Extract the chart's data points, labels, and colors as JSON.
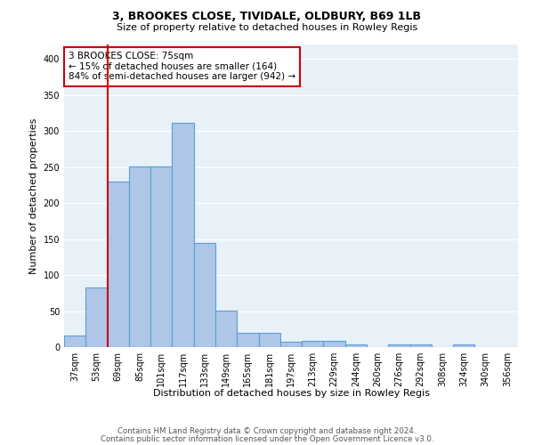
{
  "title1": "3, BROOKES CLOSE, TIVIDALE, OLDBURY, B69 1LB",
  "title2": "Size of property relative to detached houses in Rowley Regis",
  "xlabel": "Distribution of detached houses by size in Rowley Regis",
  "ylabel": "Number of detached properties",
  "categories": [
    "37sqm",
    "53sqm",
    "69sqm",
    "85sqm",
    "101sqm",
    "117sqm",
    "133sqm",
    "149sqm",
    "165sqm",
    "181sqm",
    "197sqm",
    "213sqm",
    "229sqm",
    "244sqm",
    "260sqm",
    "276sqm",
    "292sqm",
    "308sqm",
    "324sqm",
    "340sqm",
    "356sqm"
  ],
  "values": [
    16,
    83,
    230,
    251,
    251,
    311,
    145,
    51,
    20,
    20,
    7,
    9,
    9,
    4,
    0,
    4,
    4,
    0,
    4,
    0,
    0
  ],
  "bar_color": "#aec6e8",
  "bar_edge_color": "#5a9fd4",
  "red_line_color": "#cc0000",
  "red_line_x": 1.5,
  "annotation_text": "3 BROOKES CLOSE: 75sqm\n← 15% of detached houses are smaller (164)\n84% of semi-detached houses are larger (942) →",
  "annotation_box_color": "#ffffff",
  "annotation_box_edge": "#cc0000",
  "footer1": "Contains HM Land Registry data © Crown copyright and database right 2024.",
  "footer2": "Contains public sector information licensed under the Open Government Licence v3.0.",
  "ylim": [
    0,
    420
  ],
  "yticks": [
    0,
    50,
    100,
    150,
    200,
    250,
    300,
    350,
    400
  ],
  "background_color": "#e8f0f8",
  "fig_background": "#ffffff",
  "title1_fontsize": 9,
  "title2_fontsize": 8,
  "ylabel_fontsize": 8,
  "xlabel_fontsize": 8,
  "tick_fontsize": 7,
  "annot_fontsize": 7.5
}
